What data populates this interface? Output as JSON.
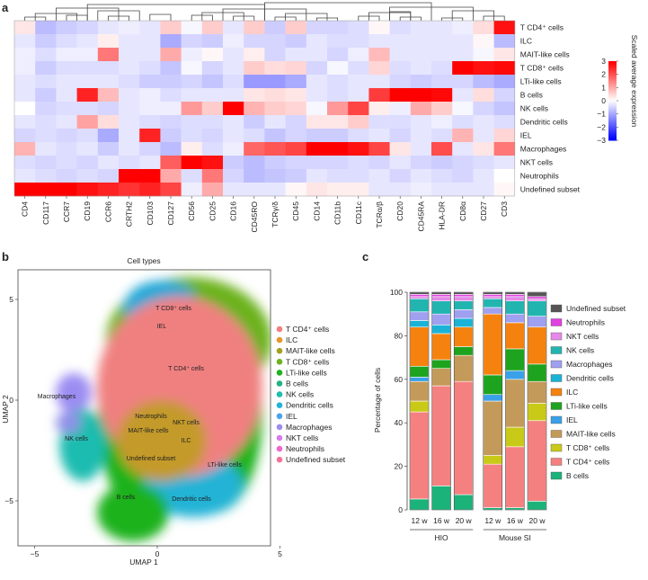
{
  "panels": {
    "a": "a",
    "b": "b",
    "c": "c"
  },
  "heatmap": {
    "columns": [
      "CD4",
      "CD117",
      "CCR7",
      "CD19",
      "CCR6",
      "CRTH2",
      "CD103",
      "CD127",
      "CD56",
      "CD25",
      "CD16",
      "CD45RO",
      "TCRγ/δ",
      "CD45",
      "CD14",
      "CD11b",
      "CD11c",
      "TCRα/β",
      "CD20",
      "CD45RA",
      "HLA-DR",
      "CD8α",
      "CD27",
      "CD3"
    ],
    "rows": [
      "T CD4⁺ cells",
      "ILC",
      "MAIT-like cells",
      "T CD8⁺ cells",
      "LTi-like cells",
      "B cells",
      "NK cells",
      "Dendritic cells",
      "IEL",
      "Macrophages",
      "NKT cells",
      "Neutrophils",
      "Undefined subset"
    ],
    "values": [
      [
        0.3,
        -0.8,
        -0.6,
        -0.5,
        -0.3,
        -0.2,
        -0.3,
        0.6,
        -0.1,
        0.6,
        -0.3,
        0.6,
        -0.6,
        0.6,
        -0.5,
        -0.5,
        -0.4,
        0.1,
        -0.4,
        -0.3,
        -0.3,
        -0.2,
        0.4,
        2.8
      ],
      [
        -0.3,
        -0.6,
        -0.4,
        -0.3,
        0.2,
        -0.3,
        -0.3,
        -1.0,
        -0.5,
        -0.6,
        -0.2,
        -0.5,
        -0.5,
        -0.6,
        -0.3,
        -0.4,
        -0.4,
        -0.3,
        -0.3,
        -0.3,
        -0.3,
        -0.3,
        0.1,
        -0.8
      ],
      [
        -0.2,
        -0.4,
        -0.2,
        -0.2,
        1.6,
        -0.3,
        -0.3,
        1.0,
        -0.2,
        0.1,
        -0.3,
        0.2,
        -0.5,
        -0.3,
        -0.3,
        -0.5,
        -0.2,
        0.8,
        -0.3,
        -0.3,
        -0.3,
        -0.3,
        -0.1,
        0.3
      ],
      [
        -0.2,
        -0.6,
        -0.4,
        -0.4,
        -0.4,
        -0.3,
        -0.4,
        -0.7,
        -0.1,
        -0.5,
        -0.3,
        0.6,
        0.4,
        0.5,
        -0.5,
        -0.1,
        -0.4,
        0.5,
        -0.4,
        -0.3,
        -0.4,
        3.0,
        2.8,
        2.9
      ],
      [
        -0.3,
        -0.4,
        -0.3,
        -0.3,
        -0.3,
        -0.4,
        -0.6,
        -0.6,
        -0.5,
        -0.7,
        -0.4,
        -1.2,
        -1.2,
        -1.0,
        -0.3,
        -0.4,
        -0.3,
        -0.3,
        -0.5,
        -0.6,
        -0.5,
        -0.5,
        -0.8,
        -1.0
      ],
      [
        -0.3,
        -0.6,
        -0.3,
        2.6,
        0.8,
        -0.3,
        -0.2,
        -0.4,
        -0.3,
        -0.3,
        -0.3,
        0.3,
        0.4,
        0.3,
        -0.3,
        -0.4,
        -0.3,
        2.3,
        3.0,
        3.0,
        2.9,
        -0.3,
        0.4,
        -0.5
      ],
      [
        0.0,
        -0.5,
        -0.4,
        -0.4,
        -0.5,
        -0.3,
        -0.2,
        -0.2,
        1.2,
        0.6,
        3.0,
        0.9,
        0.6,
        0.5,
        -0.1,
        1.2,
        2.2,
        0.2,
        -0.2,
        1.0,
        0.6,
        -0.1,
        -0.5,
        -0.7
      ],
      [
        -0.3,
        -0.4,
        -0.3,
        1.1,
        0.4,
        -0.3,
        -0.4,
        -0.5,
        -0.4,
        -0.4,
        -0.3,
        -0.6,
        -0.3,
        -0.5,
        0.3,
        0.3,
        0.6,
        -0.4,
        -0.4,
        -0.3,
        -0.2,
        -0.4,
        -0.3,
        -0.4
      ],
      [
        -0.5,
        -0.4,
        -0.5,
        -0.4,
        -1.0,
        -0.3,
        2.6,
        -0.6,
        -0.4,
        -0.5,
        -0.3,
        -0.4,
        -0.7,
        -0.5,
        -0.6,
        -0.6,
        -0.4,
        -0.3,
        -0.5,
        -0.3,
        -0.4,
        0.9,
        -0.3,
        0.5
      ],
      [
        0.9,
        -0.3,
        -0.4,
        -0.3,
        -0.6,
        -0.3,
        -0.5,
        -0.8,
        0.2,
        -0.4,
        -0.2,
        1.8,
        2.0,
        2.2,
        3.0,
        3.0,
        2.8,
        2.2,
        0.3,
        -0.3,
        2.1,
        -0.3,
        0.3,
        1.6
      ],
      [
        -0.4,
        -0.5,
        -0.4,
        -0.5,
        -0.3,
        -0.4,
        -0.3,
        1.9,
        3.0,
        2.8,
        -0.6,
        -0.8,
        -0.6,
        -0.5,
        -0.5,
        -0.5,
        -0.4,
        -0.5,
        -0.3,
        -0.5,
        -0.6,
        -0.5,
        -0.4,
        -0.3
      ],
      [
        -0.3,
        -0.4,
        -0.5,
        -0.4,
        -0.5,
        3.0,
        3.0,
        1.0,
        -0.4,
        1.6,
        -0.5,
        -0.8,
        -0.7,
        -0.6,
        -0.3,
        -0.4,
        -0.4,
        -0.3,
        -0.5,
        -0.3,
        -0.4,
        -0.5,
        -0.3,
        0.0
      ],
      [
        3.0,
        3.0,
        3.0,
        2.8,
        2.6,
        2.4,
        2.6,
        2.2,
        -0.2,
        1.0,
        -0.3,
        -0.3,
        -0.3,
        0.1,
        0.3,
        0.2,
        0.2,
        -0.3,
        -0.3,
        -0.2,
        -0.3,
        -0.3,
        -0.3,
        0.1
      ]
    ],
    "colorbar": {
      "title": "Scaled average expression",
      "ticks": [
        "3",
        "2",
        "1",
        "0",
        "−1",
        "−2",
        "−3"
      ]
    }
  },
  "umap": {
    "title": "Cell types",
    "xlabel": "UMAP 1",
    "ylabel": "UMAP 2",
    "xticks": [
      "−10",
      "−5",
      "0",
      "5"
    ],
    "yticks": [
      "5",
      "0",
      "−5"
    ],
    "cluster_labels": [
      "T CD8⁺ cells",
      "IEL",
      "T CD4⁺ cells",
      "Macrophages",
      "NK cells",
      "Neutrophils",
      "NKT cells",
      "MAIT-like cells",
      "ILC",
      "Undefined subset",
      "LTi-like cells",
      "B cells",
      "Dendritic cells"
    ],
    "legend": [
      {
        "name": "T CD4⁺ cells",
        "color": "#f08080"
      },
      {
        "name": "ILC",
        "color": "#e8962e"
      },
      {
        "name": "MAIT-like cells",
        "color": "#a6a021"
      },
      {
        "name": "T CD8⁺ cells",
        "color": "#6cb21f"
      },
      {
        "name": "LTi-like cells",
        "color": "#1fb21f"
      },
      {
        "name": "B cells",
        "color": "#21b287"
      },
      {
        "name": "NK cells",
        "color": "#1fbcb0"
      },
      {
        "name": "Dendritic cells",
        "color": "#22b3d6"
      },
      {
        "name": "IEL",
        "color": "#4aa3ee"
      },
      {
        "name": "Macrophages",
        "color": "#9b8cf2"
      },
      {
        "name": "NKT cells",
        "color": "#d77cf0"
      },
      {
        "name": "Neutrophils",
        "color": "#ef67d3"
      },
      {
        "name": "Undefined subset",
        "color": "#f5739a"
      }
    ]
  },
  "chart_data": [
    {
      "type": "bar",
      "title": "",
      "ylabel": "Percentage of cells",
      "ylim": [
        0,
        100
      ],
      "yticks": [
        "0",
        "20",
        "40",
        "60",
        "80",
        "100"
      ],
      "categories": [
        "12 w",
        "16 w",
        "20 w",
        "12 w",
        "16 w",
        "20 w"
      ],
      "groups": [
        {
          "name": "HIO",
          "count": 3
        },
        {
          "name": "Mouse SI",
          "count": 3
        }
      ],
      "series": [
        {
          "name": "B cells",
          "color": "#1bb37a",
          "values": [
            5,
            11,
            7,
            1,
            1,
            4
          ]
        },
        {
          "name": "T CD4⁺ cells",
          "color": "#f58080",
          "values": [
            40,
            46,
            52,
            20,
            28,
            37
          ]
        },
        {
          "name": "T CD8⁺ cells",
          "color": "#c9c918",
          "values": [
            5,
            0,
            0,
            4,
            9,
            8
          ]
        },
        {
          "name": "MAIT-like cells",
          "color": "#c49a5a",
          "values": [
            9,
            8,
            12,
            25,
            22,
            10
          ]
        },
        {
          "name": "IEL",
          "color": "#3aa0e8",
          "values": [
            2,
            0,
            0,
            3,
            4,
            0
          ]
        },
        {
          "name": "LTi-like cells",
          "color": "#1ea31e",
          "values": [
            5,
            4,
            4,
            9,
            10,
            8
          ]
        },
        {
          "name": "ILC",
          "color": "#f5820f",
          "values": [
            18,
            12,
            9,
            28,
            12,
            17
          ]
        },
        {
          "name": "Dendritic cells",
          "color": "#1ab3d6",
          "values": [
            3,
            4,
            4,
            0,
            0,
            0
          ]
        },
        {
          "name": "Macrophages",
          "color": "#a0a0f0",
          "values": [
            4,
            5,
            4,
            3,
            4,
            5
          ]
        },
        {
          "name": "NK cells",
          "color": "#22b5b0",
          "values": [
            6,
            6,
            4,
            4,
            6,
            7
          ]
        },
        {
          "name": "NKT cells",
          "color": "#e48ae8",
          "values": [
            1,
            2,
            2,
            1,
            2,
            1
          ]
        },
        {
          "name": "Neutrophils",
          "color": "#e040e0",
          "values": [
            1,
            1,
            1,
            1,
            1,
            1
          ]
        },
        {
          "name": "Undefined subset",
          "color": "#555555",
          "values": [
            1,
            1,
            1,
            1,
            1,
            2
          ]
        }
      ],
      "legend_order": [
        "Undefined subset",
        "Neutrophils",
        "NKT cells",
        "NK cells",
        "Macrophages",
        "Dendritic cells",
        "ILC",
        "LTi-like cells",
        "IEL",
        "MAIT-like cells",
        "T CD8⁺ cells",
        "T CD4⁺ cells",
        "B cells"
      ]
    }
  ]
}
